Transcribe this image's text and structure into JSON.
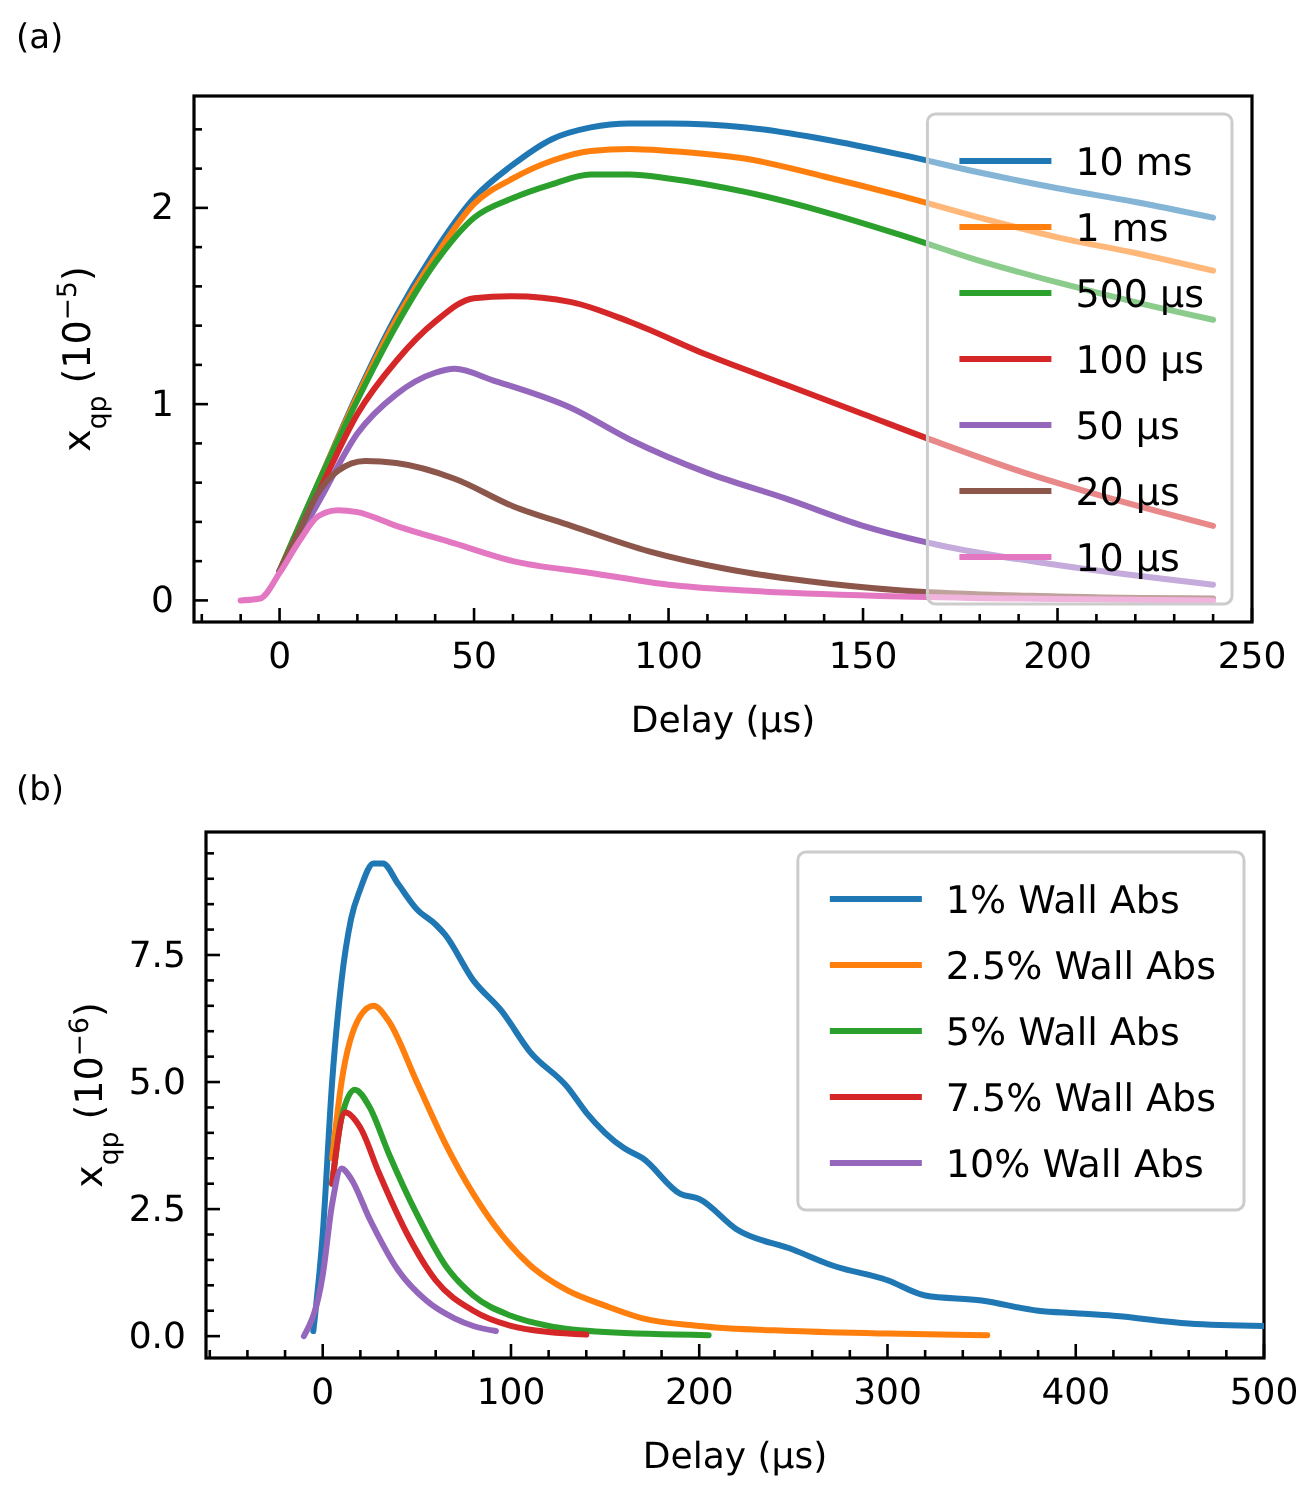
{
  "chart_data": [
    {
      "type": "line",
      "title": "(a)",
      "xlabel": "Delay (μs)",
      "ylabel": "x$_{qp}$ (10$^{−5}$)",
      "legend": "right",
      "grid": false,
      "xlim": [
        -22,
        250
      ],
      "ylim": [
        -0.11,
        2.57
      ],
      "xticks": [
        0,
        50,
        100,
        150,
        200,
        250,
        {
          "value": -20,
          "label": null
        },
        {
          "value": -10,
          "label": null
        },
        {
          "value": 10,
          "label": null
        },
        {
          "value": 20,
          "label": null
        },
        {
          "value": 30,
          "label": null
        },
        {
          "value": 40,
          "label": null
        },
        {
          "value": 60,
          "label": null
        },
        {
          "value": 70,
          "label": null
        },
        {
          "value": 80,
          "label": null
        },
        {
          "value": 90,
          "label": null
        },
        {
          "value": 110,
          "label": null
        },
        {
          "value": 120,
          "label": null
        },
        {
          "value": 130,
          "label": null
        },
        {
          "value": 140,
          "label": null
        },
        {
          "value": 160,
          "label": null
        },
        {
          "value": 170,
          "label": null
        },
        {
          "value": 180,
          "label": null
        },
        {
          "value": 190,
          "label": null
        },
        {
          "value": 210,
          "label": null
        },
        {
          "value": 220,
          "label": null
        },
        {
          "value": 230,
          "label": null
        },
        {
          "value": 240,
          "label": null
        }
      ],
      "yticks": [
        0,
        1,
        2,
        {
          "value": 0.2,
          "label": null
        },
        {
          "value": 0.4,
          "label": null
        },
        {
          "value": 0.6,
          "label": null
        },
        {
          "value": 0.8,
          "label": null
        },
        {
          "value": 1.2,
          "label": null
        },
        {
          "value": 1.4,
          "label": null
        },
        {
          "value": 1.6,
          "label": null
        },
        {
          "value": 1.8,
          "label": null
        },
        {
          "value": 2.2,
          "label": null
        },
        {
          "value": 2.4,
          "label": null
        }
      ],
      "series": [
        {
          "name": "10 ms",
          "color": "#1f77b4",
          "x": [
            0,
            10,
            20,
            30,
            40,
            50,
            60,
            70,
            80,
            90,
            100,
            120,
            140,
            160,
            180,
            200,
            220,
            240
          ],
          "values": [
            0.15,
            0.6,
            1.05,
            1.45,
            1.78,
            2.05,
            2.22,
            2.35,
            2.41,
            2.43,
            2.43,
            2.41,
            2.35,
            2.27,
            2.18,
            2.1,
            2.03,
            1.95
          ]
        },
        {
          "name": "1 ms",
          "color": "#ff7f0e",
          "x": [
            0,
            10,
            20,
            30,
            40,
            50,
            60,
            70,
            80,
            90,
            100,
            120,
            140,
            160,
            180,
            200,
            220,
            240
          ],
          "values": [
            0.15,
            0.6,
            1.04,
            1.43,
            1.75,
            2.02,
            2.15,
            2.24,
            2.29,
            2.3,
            2.29,
            2.25,
            2.16,
            2.06,
            1.95,
            1.85,
            1.77,
            1.68
          ]
        },
        {
          "name": "500 μs",
          "color": "#2ca02c",
          "x": [
            0,
            10,
            20,
            30,
            40,
            50,
            60,
            70,
            80,
            90,
            100,
            120,
            140,
            160,
            180,
            200,
            220,
            240
          ],
          "values": [
            0.15,
            0.6,
            1.02,
            1.4,
            1.72,
            1.95,
            2.05,
            2.12,
            2.17,
            2.17,
            2.15,
            2.08,
            1.98,
            1.86,
            1.73,
            1.62,
            1.52,
            1.43
          ]
        },
        {
          "name": "100 μs",
          "color": "#d62728",
          "x": [
            0,
            10,
            20,
            30,
            40,
            50,
            60,
            75,
            90,
            110,
            130,
            150,
            170,
            190,
            210,
            240
          ],
          "values": [
            0.15,
            0.55,
            0.95,
            1.22,
            1.42,
            1.54,
            1.55,
            1.52,
            1.42,
            1.25,
            1.1,
            0.95,
            0.8,
            0.66,
            0.54,
            0.38
          ]
        },
        {
          "name": "50 μs",
          "color": "#9467bd",
          "x": [
            0,
            10,
            20,
            30,
            40,
            45,
            55,
            75,
            90,
            110,
            130,
            150,
            170,
            200,
            240
          ],
          "values": [
            0.15,
            0.5,
            0.85,
            1.05,
            1.16,
            1.18,
            1.12,
            0.98,
            0.82,
            0.65,
            0.52,
            0.38,
            0.28,
            0.18,
            0.08
          ]
        },
        {
          "name": "20 μs",
          "color": "#8c564b",
          "x": [
            0,
            5,
            10,
            15,
            22,
            30,
            45,
            60,
            75,
            95,
            115,
            135,
            160,
            200,
            240
          ],
          "values": [
            0.15,
            0.35,
            0.55,
            0.66,
            0.71,
            0.7,
            0.62,
            0.48,
            0.38,
            0.25,
            0.16,
            0.1,
            0.05,
            0.02,
            0.01
          ]
        },
        {
          "name": "10 μs",
          "color": "#e377c2",
          "x": [
            -10,
            -5,
            0,
            5,
            10,
            15,
            20,
            30,
            45,
            60,
            80,
            100,
            120,
            160,
            240
          ],
          "values": [
            0,
            0.01,
            0.14,
            0.3,
            0.43,
            0.46,
            0.45,
            0.38,
            0.29,
            0.2,
            0.14,
            0.08,
            0.05,
            0.02,
            0
          ]
        }
      ]
    },
    {
      "type": "line",
      "title": "(b)",
      "xlabel": "Delay (μs)",
      "ylabel": "x$_{qp}$ (10$^{−6}$)",
      "legend": "top right",
      "grid": false,
      "xlim": [
        -62,
        500
      ],
      "ylim": [
        -0.43,
        9.92
      ],
      "xticks": [
        0,
        100,
        200,
        300,
        400,
        500,
        {
          "value": -60,
          "label": null
        },
        {
          "value": -40,
          "label": null
        },
        {
          "value": -20,
          "label": null
        },
        {
          "value": 20,
          "label": null
        },
        {
          "value": 40,
          "label": null
        },
        {
          "value": 60,
          "label": null
        },
        {
          "value": 80,
          "label": null
        },
        {
          "value": 120,
          "label": null
        },
        {
          "value": 140,
          "label": null
        },
        {
          "value": 160,
          "label": null
        },
        {
          "value": 180,
          "label": null
        },
        {
          "value": 220,
          "label": null
        },
        {
          "value": 240,
          "label": null
        },
        {
          "value": 260,
          "label": null
        },
        {
          "value": 280,
          "label": null
        },
        {
          "value": 320,
          "label": null
        },
        {
          "value": 340,
          "label": null
        },
        {
          "value": 360,
          "label": null
        },
        {
          "value": 380,
          "label": null
        },
        {
          "value": 420,
          "label": null
        },
        {
          "value": 440,
          "label": null
        },
        {
          "value": 460,
          "label": null
        },
        {
          "value": 480,
          "label": null
        }
      ],
      "yticks": [
        {
          "value": 0,
          "label": "0.0"
        },
        2.5,
        {
          "value": 5,
          "label": "5.0"
        },
        7.5,
        {
          "value": 0.5,
          "label": null
        },
        {
          "value": 1,
          "label": null
        },
        {
          "value": 1.5,
          "label": null
        },
        {
          "value": 2,
          "label": null
        },
        {
          "value": 3,
          "label": null
        },
        {
          "value": 3.5,
          "label": null
        },
        {
          "value": 4,
          "label": null
        },
        {
          "value": 4.5,
          "label": null
        },
        {
          "value": 5.5,
          "label": null
        },
        {
          "value": 6,
          "label": null
        },
        {
          "value": 6.5,
          "label": null
        },
        {
          "value": 7,
          "label": null
        },
        {
          "value": 8,
          "label": null
        },
        {
          "value": 8.5,
          "label": null
        },
        {
          "value": 9,
          "label": null
        },
        {
          "value": 9.5,
          "label": null
        }
      ],
      "series": [
        {
          "name": "1% Wall Abs",
          "color": "#1f77b4",
          "x": [
            -5,
            0,
            5,
            10,
            15,
            20,
            27,
            32,
            40,
            50,
            60,
            65,
            80,
            95,
            110,
            130,
            140,
            160,
            170,
            190,
            200,
            220,
            250,
            270,
            300,
            320,
            350,
            380,
            400,
            420,
            460,
            500
          ],
          "values": [
            0.1,
            2,
            5,
            7,
            8.2,
            8.8,
            9.3,
            9.3,
            8.9,
            8.4,
            8.1,
            7.9,
            7,
            6.4,
            5.6,
            4.9,
            4.4,
            3.7,
            3.5,
            2.8,
            2.7,
            2.1,
            1.7,
            1.4,
            1.1,
            0.8,
            0.7,
            0.5,
            0.45,
            0.4,
            0.25,
            0.2
          ]
        },
        {
          "name": "2.5% Wall Abs",
          "color": "#ff7f0e",
          "x": [
            5,
            10,
            20,
            27,
            35,
            50,
            65,
            80,
            95,
            110,
            130,
            150,
            170,
            200,
            250,
            300,
            353
          ],
          "values": [
            3.5,
            5,
            6.3,
            6.5,
            6.2,
            5,
            3.8,
            2.8,
            2,
            1.4,
            0.9,
            0.6,
            0.35,
            0.2,
            0.1,
            0.05,
            0.02
          ]
        },
        {
          "name": "5% Wall Abs",
          "color": "#2ca02c",
          "x": [
            5,
            10,
            17,
            25,
            35,
            50,
            65,
            80,
            100,
            120,
            150,
            205
          ],
          "values": [
            3,
            4.3,
            4.85,
            4.5,
            3.6,
            2.4,
            1.4,
            0.8,
            0.4,
            0.2,
            0.08,
            0.02
          ]
        },
        {
          "name": "7.5% Wall Abs",
          "color": "#d62728",
          "x": [
            5,
            12,
            20,
            30,
            45,
            60,
            80,
            100,
            120,
            140
          ],
          "values": [
            3,
            4.4,
            4.1,
            3.2,
            2,
            1.1,
            0.5,
            0.2,
            0.08,
            0.03
          ]
        },
        {
          "name": "10% Wall Abs",
          "color": "#9467bd",
          "x": [
            -10,
            0,
            5,
            10,
            15,
            25,
            40,
            55,
            70,
            80,
            92
          ],
          "values": [
            0,
            1.2,
            2.6,
            3.3,
            3.1,
            2.3,
            1.3,
            0.7,
            0.35,
            0.2,
            0.1
          ]
        }
      ]
    }
  ]
}
